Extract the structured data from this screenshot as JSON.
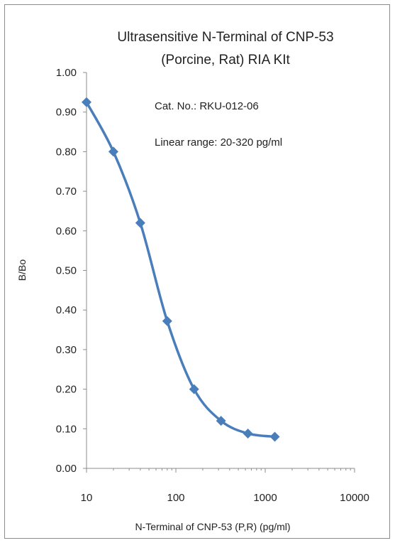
{
  "chart_data": {
    "type": "line",
    "title": "Ultrasensitive N-Terminal of CNP-53",
    "subtitle": "(Porcine, Rat) RIA KIt",
    "annotations": [
      "Cat. No.:  RKU-012-06",
      "Linear range: 20-320 pg/ml"
    ],
    "xlabel": "N-Terminal of CNP-53 (P,R)  (pg/ml)",
    "ylabel": "B/Bo",
    "x_scale": "log",
    "xlim": [
      10,
      10000
    ],
    "ylim": [
      0,
      1
    ],
    "x_ticks": [
      "10",
      "100",
      "1000",
      "10000"
    ],
    "y_ticks": [
      "0.00",
      "0.10",
      "0.20",
      "0.30",
      "0.40",
      "0.50",
      "0.60",
      "0.70",
      "0.80",
      "0.90",
      "1.00"
    ],
    "grid": false,
    "legend": "none",
    "series_color": "#4a7ebb",
    "series": [
      {
        "x": [
          10,
          20,
          40,
          80,
          160,
          320,
          640,
          1280
        ],
        "y": [
          0.925,
          0.8,
          0.62,
          0.372,
          0.2,
          0.12,
          0.088,
          0.08
        ]
      }
    ]
  }
}
